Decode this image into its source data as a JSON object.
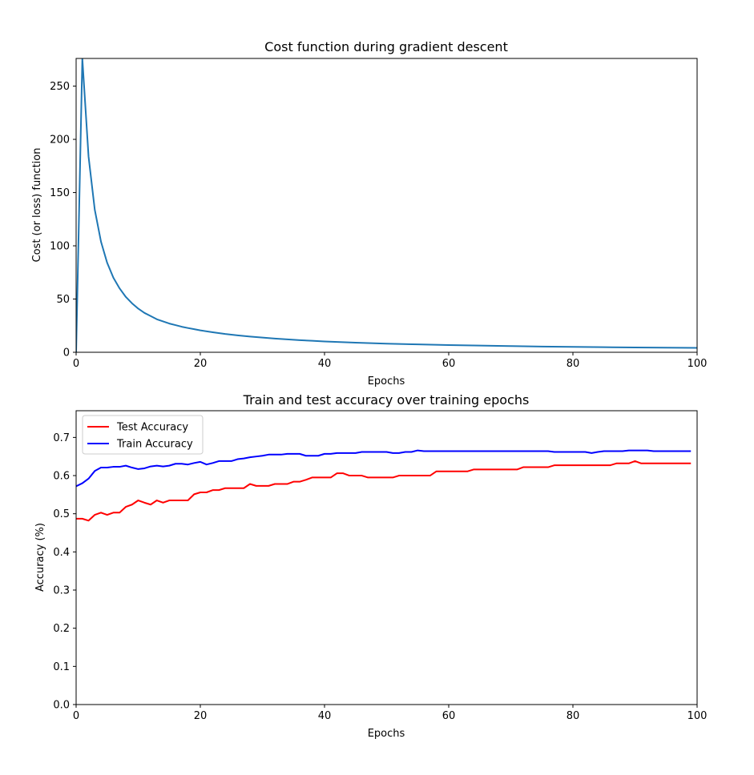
{
  "chart_data": [
    {
      "type": "line",
      "title": "Cost function during gradient descent",
      "xlabel": "Epochs",
      "ylabel": "Cost (or loss) function",
      "xlim": [
        0,
        100
      ],
      "ylim": [
        0,
        276
      ],
      "xticks": [
        "0",
        "20",
        "40",
        "60",
        "80",
        "100"
      ],
      "yticks": [
        "0",
        "50",
        "100",
        "150",
        "200",
        "250"
      ],
      "grid": false,
      "series": [
        {
          "color": "#1f77b4",
          "x": [
            0,
            1,
            2,
            3,
            4,
            5,
            6,
            7,
            8,
            9,
            10,
            11,
            12,
            13,
            14,
            15,
            16,
            17,
            18,
            19,
            20,
            22,
            24,
            26,
            28,
            30,
            32,
            34,
            36,
            38,
            40,
            45,
            50,
            55,
            60,
            65,
            70,
            75,
            80,
            85,
            90,
            95,
            100
          ],
          "y": [
            0,
            276,
            184,
            134,
            104,
            84,
            70,
            60,
            52,
            46,
            41,
            37,
            34,
            31,
            29,
            27,
            25.5,
            24,
            22.8,
            21.7,
            20.6,
            18.8,
            17.2,
            15.9,
            14.8,
            13.8,
            12.9,
            12.1,
            11.4,
            10.8,
            10.2,
            9.0,
            8.1,
            7.4,
            6.8,
            6.3,
            5.8,
            5.4,
            5.1,
            4.8,
            4.5,
            4.3,
            4.1
          ]
        }
      ]
    },
    {
      "type": "line",
      "title": "Train and test accuracy over training epochs",
      "xlabel": "Epochs",
      "ylabel": "Accuracy (%)",
      "xlim": [
        0,
        100
      ],
      "ylim": [
        0.0,
        0.77
      ],
      "xticks": [
        "0",
        "20",
        "40",
        "60",
        "80",
        "100"
      ],
      "yticks": [
        "0.0",
        "0.1",
        "0.2",
        "0.3",
        "0.4",
        "0.5",
        "0.6",
        "0.7"
      ],
      "grid": false,
      "legend_position": "upper-left",
      "series": [
        {
          "name": "Test Accuracy",
          "color": "#ff0000",
          "x": [
            0,
            1,
            2,
            3,
            4,
            5,
            6,
            7,
            8,
            9,
            10,
            11,
            12,
            13,
            14,
            15,
            16,
            17,
            18,
            19,
            20,
            21,
            22,
            23,
            24,
            25,
            26,
            27,
            28,
            29,
            30,
            31,
            32,
            33,
            34,
            35,
            36,
            37,
            38,
            39,
            40,
            41,
            42,
            43,
            44,
            45,
            46,
            47,
            48,
            49,
            50,
            51,
            52,
            53,
            54,
            55,
            56,
            57,
            58,
            59,
            60,
            61,
            62,
            63,
            64,
            65,
            66,
            67,
            68,
            69,
            70,
            71,
            72,
            73,
            74,
            75,
            76,
            77,
            78,
            79,
            80,
            81,
            82,
            83,
            84,
            85,
            86,
            87,
            88,
            89,
            90,
            91,
            92,
            93,
            94,
            95,
            96,
            97,
            98,
            99
          ],
          "y": [
            0.487,
            0.487,
            0.482,
            0.497,
            0.503,
            0.497,
            0.503,
            0.503,
            0.518,
            0.524,
            0.535,
            0.529,
            0.524,
            0.535,
            0.529,
            0.535,
            0.535,
            0.535,
            0.535,
            0.551,
            0.556,
            0.556,
            0.562,
            0.562,
            0.567,
            0.567,
            0.567,
            0.567,
            0.578,
            0.573,
            0.573,
            0.573,
            0.578,
            0.578,
            0.578,
            0.584,
            0.584,
            0.589,
            0.595,
            0.595,
            0.595,
            0.595,
            0.606,
            0.606,
            0.6,
            0.6,
            0.6,
            0.595,
            0.595,
            0.595,
            0.595,
            0.595,
            0.6,
            0.6,
            0.6,
            0.6,
            0.6,
            0.6,
            0.611,
            0.611,
            0.611,
            0.611,
            0.611,
            0.611,
            0.616,
            0.616,
            0.616,
            0.616,
            0.616,
            0.616,
            0.616,
            0.616,
            0.622,
            0.622,
            0.622,
            0.622,
            0.622,
            0.627,
            0.627,
            0.627,
            0.627,
            0.627,
            0.627,
            0.627,
            0.627,
            0.627,
            0.627,
            0.632,
            0.632,
            0.632,
            0.638,
            0.632,
            0.632,
            0.632,
            0.632,
            0.632,
            0.632,
            0.632,
            0.632,
            0.632
          ]
        },
        {
          "name": "Train Accuracy",
          "color": "#0000ff",
          "x": [
            0,
            1,
            2,
            3,
            4,
            5,
            6,
            7,
            8,
            9,
            10,
            11,
            12,
            13,
            14,
            15,
            16,
            17,
            18,
            19,
            20,
            21,
            22,
            23,
            24,
            25,
            26,
            27,
            28,
            29,
            30,
            31,
            32,
            33,
            34,
            35,
            36,
            37,
            38,
            39,
            40,
            41,
            42,
            43,
            44,
            45,
            46,
            47,
            48,
            49,
            50,
            51,
            52,
            53,
            54,
            55,
            56,
            57,
            58,
            59,
            60,
            61,
            62,
            63,
            64,
            65,
            66,
            67,
            68,
            69,
            70,
            71,
            72,
            73,
            74,
            75,
            76,
            77,
            78,
            79,
            80,
            81,
            82,
            83,
            84,
            85,
            86,
            87,
            88,
            89,
            90,
            91,
            92,
            93,
            94,
            95,
            96,
            97,
            98,
            99
          ],
          "y": [
            0.572,
            0.58,
            0.592,
            0.612,
            0.621,
            0.621,
            0.623,
            0.623,
            0.626,
            0.621,
            0.617,
            0.619,
            0.624,
            0.626,
            0.624,
            0.626,
            0.631,
            0.631,
            0.629,
            0.633,
            0.636,
            0.629,
            0.633,
            0.638,
            0.638,
            0.638,
            0.643,
            0.645,
            0.648,
            0.65,
            0.652,
            0.655,
            0.655,
            0.655,
            0.657,
            0.657,
            0.657,
            0.652,
            0.652,
            0.652,
            0.657,
            0.657,
            0.659,
            0.659,
            0.659,
            0.659,
            0.662,
            0.662,
            0.662,
            0.662,
            0.662,
            0.659,
            0.659,
            0.662,
            0.662,
            0.666,
            0.664,
            0.664,
            0.664,
            0.664,
            0.664,
            0.664,
            0.664,
            0.664,
            0.664,
            0.664,
            0.664,
            0.664,
            0.664,
            0.664,
            0.664,
            0.664,
            0.664,
            0.664,
            0.664,
            0.664,
            0.664,
            0.662,
            0.662,
            0.662,
            0.662,
            0.662,
            0.662,
            0.659,
            0.662,
            0.664,
            0.664,
            0.664,
            0.664,
            0.666,
            0.666,
            0.666,
            0.666,
            0.664,
            0.664,
            0.664,
            0.664,
            0.664,
            0.664,
            0.664
          ]
        }
      ]
    }
  ]
}
